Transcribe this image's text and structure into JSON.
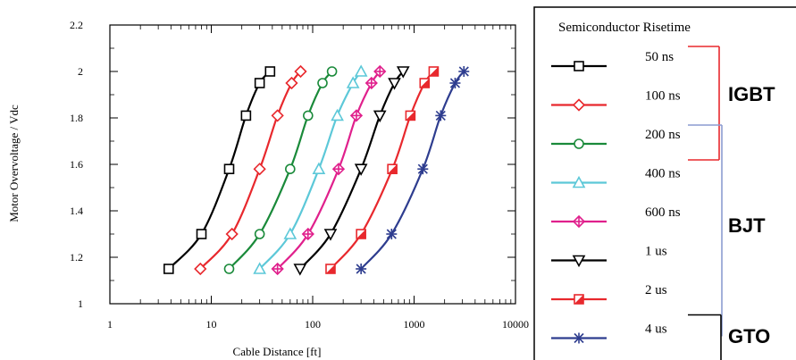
{
  "chart_data": {
    "type": "line",
    "xlabel": "Cable Distance [ft]",
    "ylabel": "Motor Overvoltage / Vdc",
    "x_scale": "log",
    "xlim": [
      1,
      10000
    ],
    "ylim": [
      1,
      2.2
    ],
    "x_ticks": [
      1,
      10,
      100,
      1000,
      10000
    ],
    "x_tick_labels": [
      "1",
      "10",
      "100",
      "1000",
      "10000"
    ],
    "y_ticks": [
      1,
      1.2,
      1.4,
      1.6,
      1.8,
      2,
      2.2
    ],
    "y_tick_labels": [
      "1",
      "1.2",
      "1.4",
      "1.6",
      "1.8",
      "2",
      "2.2"
    ],
    "legend_title": "Semiconductor Risetime",
    "legend_position": "right",
    "series": [
      {
        "name": "50 ns",
        "color": "#000000",
        "marker": "square-open",
        "x": [
          3.8,
          8,
          15,
          22,
          30,
          38
        ],
        "y": [
          1.15,
          1.3,
          1.58,
          1.81,
          1.95,
          2.0
        ]
      },
      {
        "name": "100 ns",
        "color": "#e8282d",
        "marker": "diamond-open",
        "x": [
          7.8,
          16,
          30,
          45,
          62,
          76
        ],
        "y": [
          1.15,
          1.3,
          1.58,
          1.81,
          1.95,
          2.0
        ]
      },
      {
        "name": "200 ns",
        "color": "#1a8a3a",
        "marker": "circle-open",
        "x": [
          15,
          30,
          60,
          90,
          125,
          155
        ],
        "y": [
          1.15,
          1.3,
          1.58,
          1.81,
          1.95,
          2.0
        ]
      },
      {
        "name": "400 ns",
        "color": "#5cc8d8",
        "marker": "triangle-up-open",
        "x": [
          30,
          60,
          115,
          175,
          250,
          300
        ],
        "y": [
          1.15,
          1.3,
          1.58,
          1.81,
          1.95,
          2.0
        ]
      },
      {
        "name": "600 ns",
        "color": "#e0208c",
        "marker": "diamond-cross",
        "x": [
          45,
          90,
          180,
          270,
          380,
          460
        ],
        "y": [
          1.15,
          1.3,
          1.58,
          1.81,
          1.95,
          2.0
        ]
      },
      {
        "name": "1 us",
        "color": "#000000",
        "marker": "triangle-down-open",
        "x": [
          75,
          150,
          300,
          460,
          640,
          780
        ],
        "y": [
          1.15,
          1.3,
          1.58,
          1.81,
          1.95,
          2.0
        ]
      },
      {
        "name": "2 us",
        "color": "#e8282d",
        "marker": "square-half-filled",
        "x": [
          150,
          300,
          610,
          920,
          1270,
          1560
        ],
        "y": [
          1.15,
          1.3,
          1.58,
          1.81,
          1.95,
          2.0
        ]
      },
      {
        "name": "4 us",
        "color": "#2e3d8f",
        "marker": "asterisk",
        "x": [
          300,
          600,
          1220,
          1830,
          2540,
          3100
        ],
        "y": [
          1.15,
          1.3,
          1.58,
          1.81,
          1.95,
          2.0
        ]
      }
    ],
    "groups": [
      {
        "label": "IGBT",
        "from": "50 ns",
        "to": "200 ns",
        "color": "#e8282d"
      },
      {
        "label": "BJT",
        "from": "200 ns",
        "to": "4 us",
        "color": "#8c9cd0"
      },
      {
        "label": "GTO",
        "from": "4 us",
        "to": "4 us",
        "color": "#000000"
      }
    ]
  }
}
